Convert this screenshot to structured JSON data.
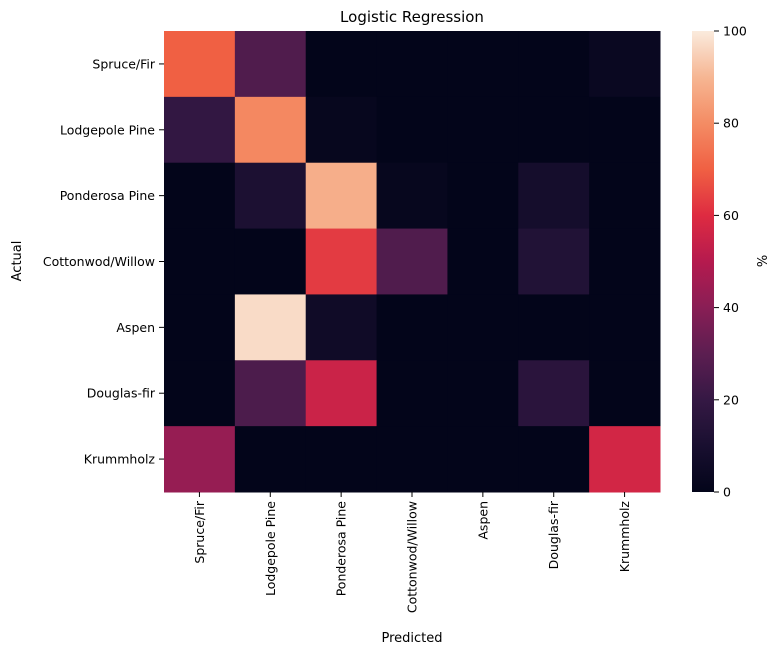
{
  "chart_data": {
    "type": "heatmap",
    "title": "Logistic Regression",
    "xlabel": "Predicted",
    "ylabel": "Actual",
    "x_categories": [
      "Spruce/Fir",
      "Lodgepole Pine",
      "Ponderosa Pine",
      "Cottonwod/Willow",
      "Aspen",
      "Douglas-fir",
      "Krummholz"
    ],
    "y_categories": [
      "Spruce/Fir",
      "Lodgepole Pine",
      "Ponderosa Pine",
      "Cottonwod/Willow",
      "Aspen",
      "Douglas-fir",
      "Krummholz"
    ],
    "values": [
      [
        70,
        27,
        0,
        0,
        0,
        0,
        3
      ],
      [
        19,
        79,
        2,
        0,
        0,
        0,
        0
      ],
      [
        0,
        11,
        88,
        2,
        0,
        8,
        0
      ],
      [
        0,
        0,
        63,
        27,
        0,
        13,
        0
      ],
      [
        0,
        97,
        6,
        0,
        0,
        0,
        0
      ],
      [
        0,
        26,
        55,
        0,
        0,
        16,
        0
      ],
      [
        43,
        0,
        0,
        0,
        0,
        0,
        57
      ]
    ],
    "colorbar": {
      "label": "%",
      "range": [
        0,
        100
      ],
      "ticks": [
        0,
        20,
        40,
        60,
        80,
        100
      ],
      "colormap": "rocket"
    }
  }
}
